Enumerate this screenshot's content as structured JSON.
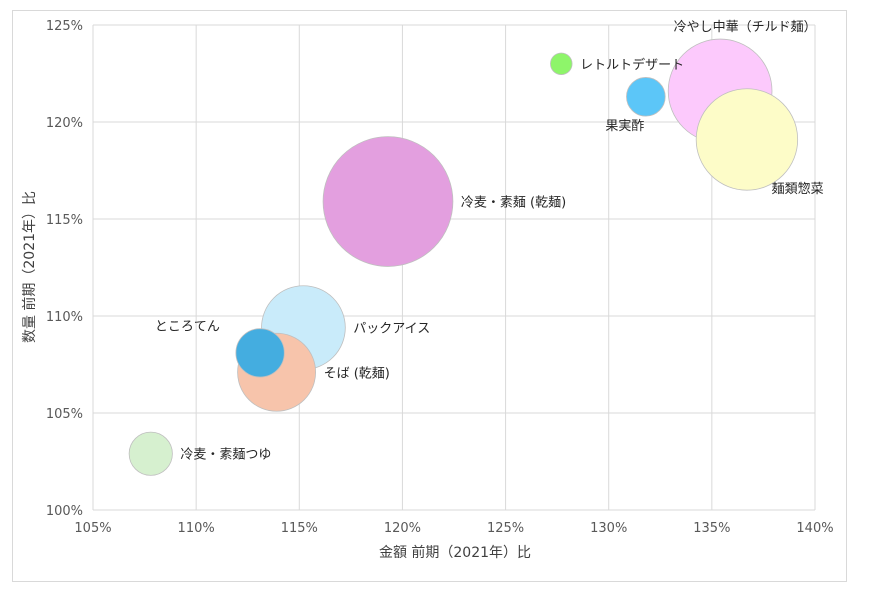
{
  "chart_data": {
    "type": "bubble",
    "xlabel": "金額  前期（2021年）比",
    "ylabel": "数量  前期（2021年）比",
    "xlim": [
      105,
      140
    ],
    "ylim": [
      100,
      125
    ],
    "xticks": [
      105,
      110,
      115,
      120,
      125,
      130,
      135,
      140
    ],
    "yticks": [
      100,
      105,
      110,
      115,
      120,
      125
    ],
    "xtick_labels": [
      "105%",
      "110%",
      "115%",
      "120%",
      "125%",
      "130%",
      "135%",
      "140%"
    ],
    "ytick_labels": [
      "100%",
      "105%",
      "110%",
      "115%",
      "120%",
      "125%"
    ],
    "grid": true,
    "points": [
      {
        "name": "冷麦・素麺つゆ",
        "x": 107.8,
        "y": 102.9,
        "size": 2,
        "color": "#d6f0cf",
        "label_pos": "right"
      },
      {
        "name": "そば (乾麺)",
        "x": 113.9,
        "y": 107.1,
        "size": 6.5,
        "color": "#f7c4ab",
        "label_pos": "right"
      },
      {
        "name": "パックアイス",
        "x": 115.2,
        "y": 109.4,
        "size": 7.5,
        "color": "#c9ebfa",
        "label_pos": "right"
      },
      {
        "name": "ところてん",
        "x": 113.1,
        "y": 108.1,
        "size": 2.5,
        "color": "#44ade0",
        "label_pos": "left-top"
      },
      {
        "name": "冷麦・素麺 (乾麺)",
        "x": 119.3,
        "y": 115.9,
        "size": 18,
        "color": "#e39fdf",
        "label_pos": "right"
      },
      {
        "name": "レトルトデザート",
        "x": 127.7,
        "y": 123.0,
        "size": 0.5,
        "color": "#8ef56a",
        "label_pos": "right"
      },
      {
        "name": "果実酢",
        "x": 131.8,
        "y": 121.3,
        "size": 1.6,
        "color": "#5cc6f8",
        "label_pos": "bottom-left"
      },
      {
        "name": "冷やし中華（チルド麺）",
        "x": 135.4,
        "y": 121.6,
        "size": 11.5,
        "color": "#fcc9fc",
        "label_pos": "top"
      },
      {
        "name": "麺類惣菜",
        "x": 136.7,
        "y": 119.1,
        "size": 11,
        "color": "#fdfcc8",
        "label_pos": "bottom-right"
      }
    ]
  }
}
